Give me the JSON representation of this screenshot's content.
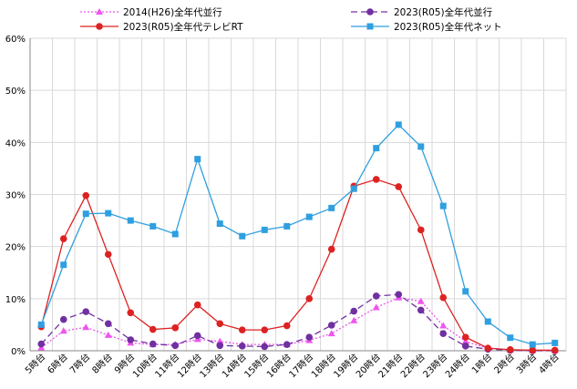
{
  "chart_data": {
    "type": "line",
    "categories": [
      "5時台",
      "6時台",
      "7時台",
      "8時台",
      "9時台",
      "10時台",
      "11時台",
      "12時台",
      "13時台",
      "14時台",
      "15時台",
      "16時台",
      "17時台",
      "18時台",
      "19時台",
      "20時台",
      "21時台",
      "22時台",
      "23時台",
      "24時台",
      "1時台",
      "2時台",
      "3時台",
      "4時台"
    ],
    "ylim": [
      0,
      60
    ],
    "yticks": [
      "0%",
      "10%",
      "20%",
      "30%",
      "40%",
      "50%",
      "60%"
    ],
    "grid": true,
    "legend_position": "top",
    "series": [
      {
        "name": "2014(H26)全年代並行",
        "color": "#ee55ee",
        "marker": "triangle",
        "dash": "dotted",
        "values": [
          0.6,
          3.8,
          4.5,
          3.0,
          1.5,
          1.2,
          1.2,
          2.2,
          1.8,
          1.2,
          1.2,
          1.2,
          2.0,
          3.3,
          5.8,
          8.3,
          10.2,
          9.5,
          4.8,
          1.8,
          0.5,
          0.2,
          0.1,
          0.1
        ]
      },
      {
        "name": "2023(R05)全年代並行",
        "color": "#7030a0",
        "marker": "circle",
        "dash": "dashed",
        "values": [
          1.3,
          6.0,
          7.5,
          5.2,
          2.1,
          1.3,
          1.0,
          2.9,
          1.0,
          0.9,
          0.8,
          1.2,
          2.6,
          4.9,
          7.6,
          10.5,
          10.8,
          7.8,
          3.3,
          0.9,
          0.3,
          0.1,
          0.0,
          0.0
        ]
      },
      {
        "name": "2023(R05)全年代テレビRT",
        "color": "#dd2222",
        "marker": "circle",
        "dash": "solid",
        "values": [
          4.6,
          21.5,
          29.8,
          18.5,
          7.3,
          4.1,
          4.4,
          8.8,
          5.2,
          4.0,
          4.0,
          4.8,
          10.0,
          19.5,
          31.6,
          32.9,
          31.5,
          23.2,
          10.2,
          2.6,
          0.5,
          0.2,
          0.1,
          0.1
        ]
      },
      {
        "name": "2023(R05)全年代ネット",
        "color": "#2f9fe0",
        "marker": "square",
        "dash": "solid",
        "values": [
          5.0,
          16.5,
          26.3,
          26.4,
          25.0,
          23.9,
          22.4,
          36.8,
          24.4,
          22.0,
          23.2,
          23.9,
          25.7,
          27.4,
          31.1,
          38.9,
          43.4,
          39.2,
          27.8,
          11.4,
          5.6,
          2.5,
          1.2,
          1.5
        ]
      }
    ]
  }
}
